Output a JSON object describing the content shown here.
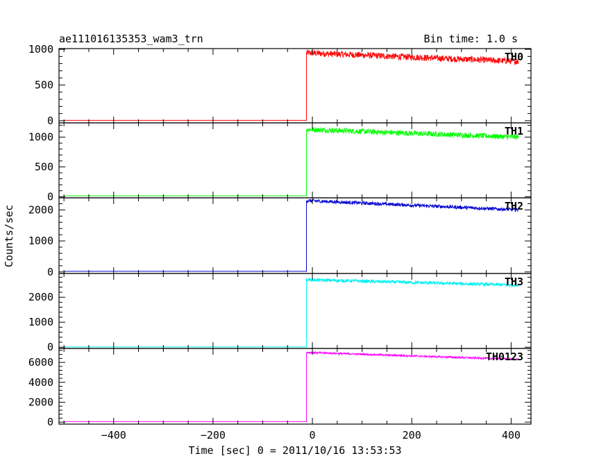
{
  "header": {
    "title": "ae111016135353_wam3_trn",
    "bin_time": "Bin time: 1.0 s"
  },
  "chart_data": {
    "type": "line",
    "title": "ae111016135353_wam3_trn",
    "xlabel": "Time [sec] 0 = 2011/10/16 13:53:53",
    "ylabel": "Counts/sec",
    "xlim": [
      -510,
      440
    ],
    "x_ticks": [
      -400,
      -200,
      0,
      200,
      400
    ],
    "x_tick_labels": [
      "−400",
      "−200",
      "0",
      "200",
      "400"
    ],
    "trigger_time": -12,
    "x_end": 415,
    "panels": [
      {
        "name": "TH0",
        "color": "#ff0000",
        "ylim": [
          -30,
          1010
        ],
        "y_ticks": [
          0,
          500,
          1000
        ],
        "y_tick_labels": [
          "0",
          "500",
          "1000"
        ],
        "background": 5,
        "peak": 950,
        "end_level": 830,
        "noise": 45
      },
      {
        "name": "TH1",
        "color": "#00ff00",
        "ylim": [
          -20,
          1240
        ],
        "y_ticks": [
          0,
          500,
          1000
        ],
        "y_tick_labels": [
          "0",
          "500",
          "1000"
        ],
        "background": 15,
        "peak": 1130,
        "end_level": 1000,
        "noise": 45
      },
      {
        "name": "TH2",
        "color": "#0000d0",
        "ylim": [
          -50,
          2390
        ],
        "y_ticks": [
          0,
          1000,
          2000
        ],
        "y_tick_labels": [
          "0",
          "1000",
          "2000"
        ],
        "background": 20,
        "peak": 2300,
        "end_level": 2000,
        "noise": 55
      },
      {
        "name": "TH3",
        "color": "#00f0f0",
        "ylim": [
          -50,
          2950
        ],
        "y_ticks": [
          0,
          1000,
          2000
        ],
        "y_tick_labels": [
          "0",
          "1000",
          "2000"
        ],
        "background": 15,
        "peak": 2700,
        "end_level": 2480,
        "noise": 65
      },
      {
        "name": "TH0123",
        "color": "#ff00ff",
        "ylim": [
          -200,
          7400
        ],
        "y_ticks": [
          0,
          2000,
          4000,
          6000
        ],
        "y_tick_labels": [
          "0",
          "2000",
          "4000",
          "6000"
        ],
        "background": 50,
        "peak": 7000,
        "end_level": 6300,
        "noise": 90
      }
    ]
  }
}
